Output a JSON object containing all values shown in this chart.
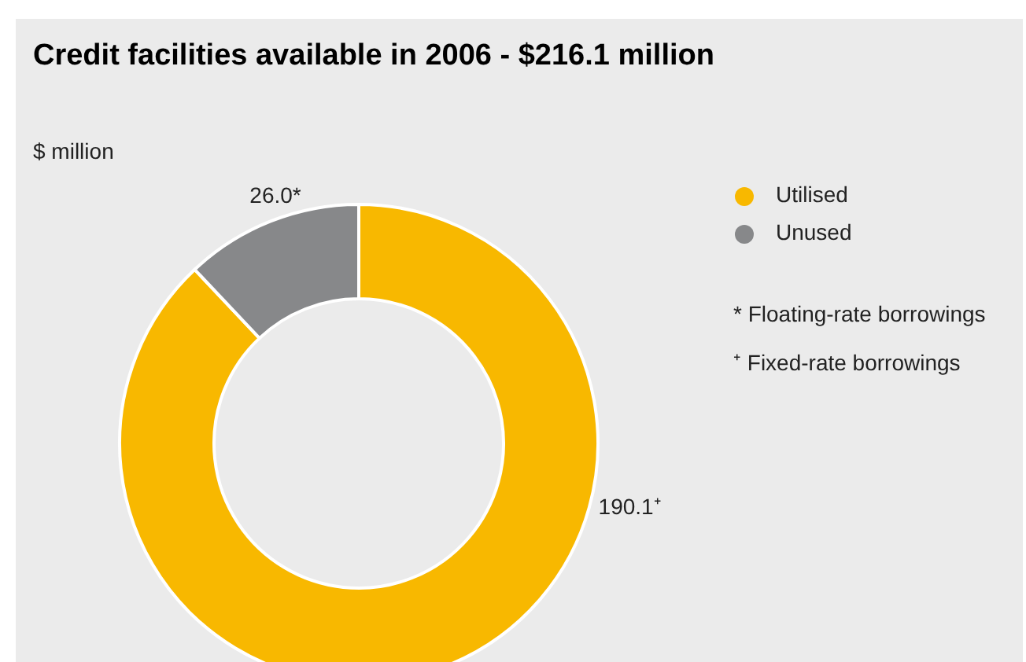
{
  "chart_data": {
    "type": "donut",
    "title": "Credit facilities available in 2006 - $216.1 million",
    "ylabel": "$ million",
    "categories": [
      "Utilised",
      "Unused"
    ],
    "values": [
      190.1,
      26.0
    ],
    "colors": [
      "#f8b800",
      "#87888a"
    ],
    "value_labels": [
      "190.1⁺",
      "26.0*"
    ],
    "legend": "right",
    "annotations": [
      "* Floating-rate borrowings",
      "⁺ Fixed-rate borrowings"
    ]
  }
}
